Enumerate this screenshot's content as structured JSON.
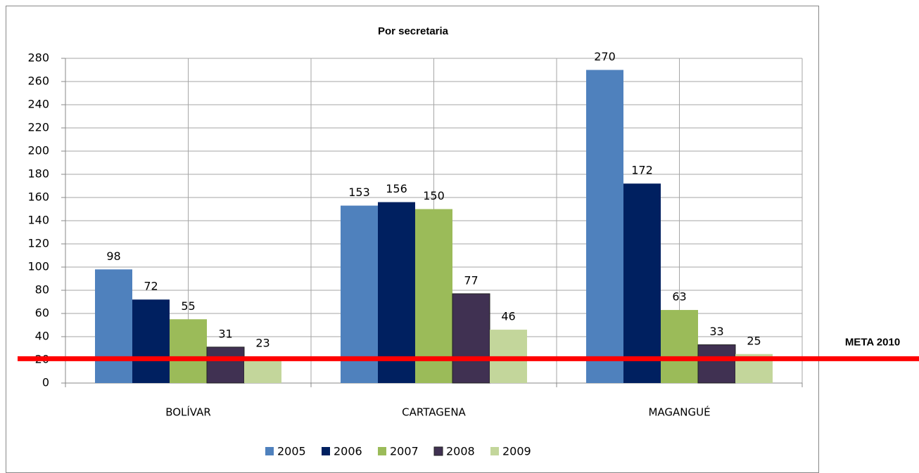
{
  "chart_data": {
    "type": "bar",
    "title": "Por secretaria",
    "categories": [
      "BOLÍVAR",
      "CARTAGENA",
      "MAGANGUÉ"
    ],
    "series": [
      {
        "name": "2005",
        "color": "#4f81bd",
        "values": [
          98,
          153,
          270
        ]
      },
      {
        "name": "2006",
        "color": "#002060",
        "values": [
          72,
          156,
          172
        ]
      },
      {
        "name": "2007",
        "color": "#9bbb59",
        "values": [
          55,
          150,
          63
        ]
      },
      {
        "name": "2008",
        "color": "#403152",
        "values": [
          31,
          77,
          33
        ]
      },
      {
        "name": "2009",
        "color": "#c3d69b",
        "values": [
          23,
          46,
          25
        ]
      }
    ],
    "ylim": [
      0,
      280
    ],
    "yticks": [
      0,
      20,
      40,
      60,
      80,
      100,
      120,
      140,
      160,
      180,
      200,
      220,
      240,
      260,
      280
    ],
    "grid": true,
    "legend": "bottom",
    "annotations": [
      {
        "label": "META 2010",
        "value": 21,
        "color": "#ff0000"
      }
    ]
  }
}
